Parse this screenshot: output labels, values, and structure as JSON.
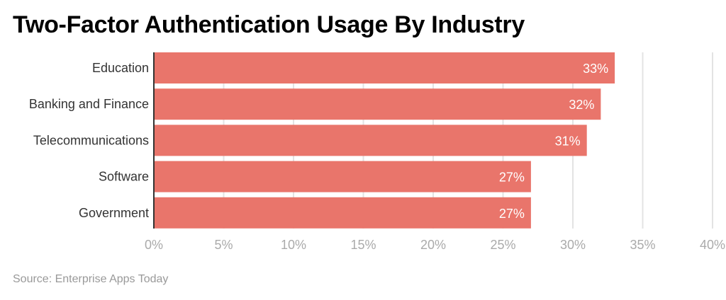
{
  "chart_data": {
    "type": "bar",
    "orientation": "horizontal",
    "title": "Two-Factor Authentication Usage By Industry",
    "source": "Source: Enterprise Apps Today",
    "categories": [
      "Education",
      "Banking and Finance",
      "Telecommunications",
      "Software",
      "Government"
    ],
    "values": [
      33,
      32,
      31,
      27,
      27
    ],
    "data_labels": [
      "33%",
      "32%",
      "31%",
      "27%",
      "27%"
    ],
    "xlim": [
      0,
      40
    ],
    "x_ticks": [
      0,
      5,
      10,
      15,
      20,
      25,
      30,
      35,
      40
    ],
    "x_tick_labels": [
      "0%",
      "5%",
      "10%",
      "15%",
      "20%",
      "25%",
      "30%",
      "35%",
      "40%"
    ],
    "grid": true,
    "bar_color": "#E9756B"
  }
}
